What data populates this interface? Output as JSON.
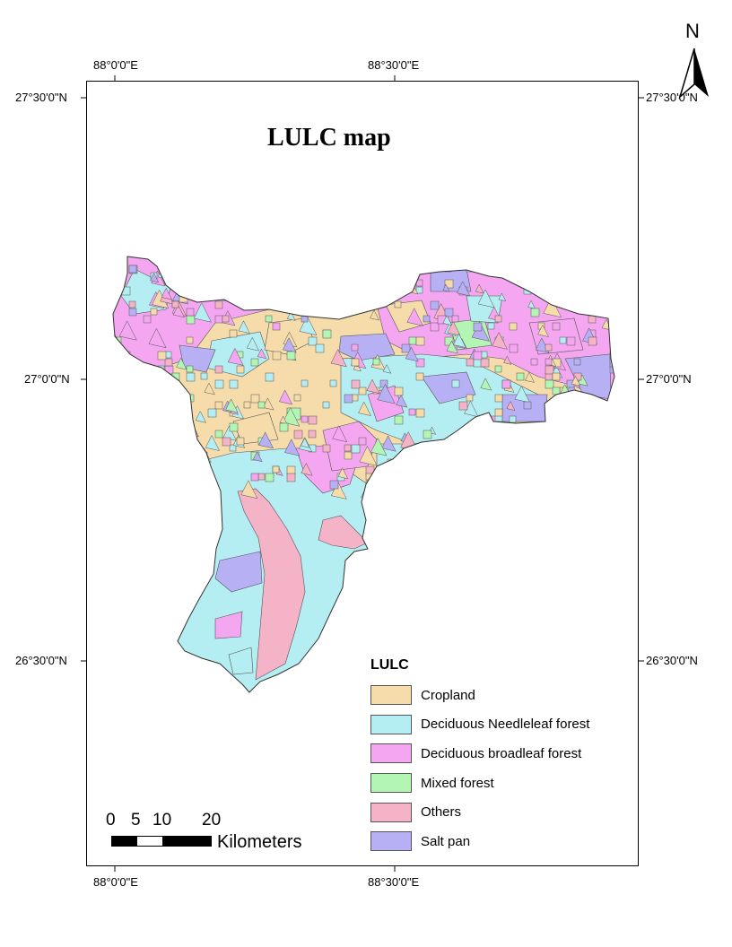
{
  "title": "LULC map",
  "graticule": {
    "top_longitudes": [
      "88°0'0\"E",
      "88°30'0\"E"
    ],
    "bottom_longitudes": [
      "88°0'0\"E",
      "88°30'0\"E"
    ],
    "left_latitudes": [
      "27°30'0\"N",
      "27°0'0\"N",
      "26°30'0\"N"
    ],
    "right_latitudes": [
      "27°30'0\"N",
      "27°0'0\"N",
      "26°30'0\"N"
    ]
  },
  "north_arrow": {
    "label": "N",
    "icon": "north-arrow-icon"
  },
  "legend": {
    "title": "LULC",
    "items": [
      {
        "label": "Cropland",
        "color": "#F5DCAA"
      },
      {
        "label": "Deciduous Needleleaf forest",
        "color": "#B4EEF2"
      },
      {
        "label": "Deciduous broadleaf forest",
        "color": "#F5A6F0"
      },
      {
        "label": "Mixed forest",
        "color": "#B3F5B3"
      },
      {
        "label": "Others",
        "color": "#F5B3C8"
      },
      {
        "label": "Salt pan",
        "color": "#B8B0F5"
      }
    ]
  },
  "scale_bar": {
    "ticks": [
      "0",
      "5",
      "10",
      "20"
    ],
    "unit": "Kilometers"
  }
}
